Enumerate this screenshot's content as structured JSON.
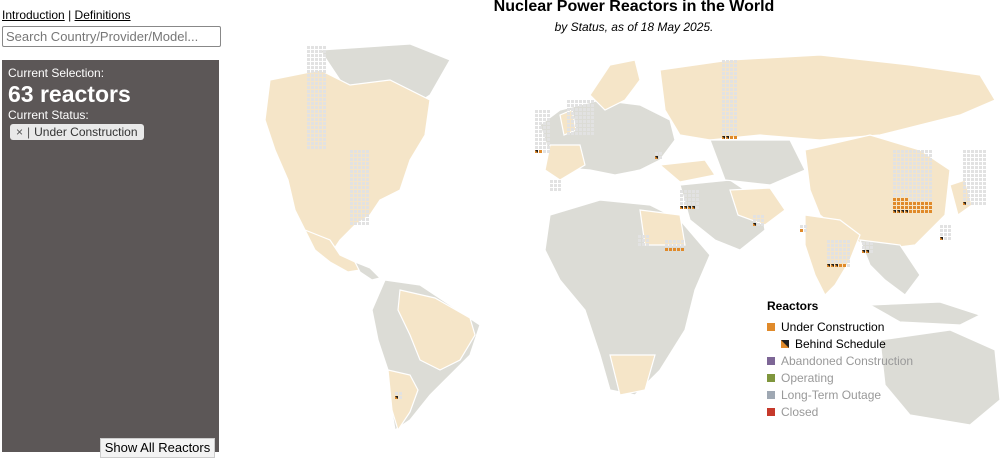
{
  "links": {
    "introduction": "Introduction",
    "separator": "|",
    "definitions": "Definitions"
  },
  "search": {
    "placeholder": "Search Country/Provider/Model..."
  },
  "panel": {
    "selection_label": "Current Selection:",
    "count_text": "63 reactors",
    "status_label": "Current Status:",
    "chip_close": "×",
    "chip_sep": "|",
    "chip_label": "Under Construction",
    "show_all": "Show All Reactors"
  },
  "title": "Nuclear Power Reactors in the World",
  "subtitle": "by Status, as of 18 May 2025.",
  "legend": {
    "title": "Reactors",
    "items": [
      {
        "label": "Under Construction",
        "color": "#e08a2a",
        "dim": false
      },
      {
        "label": "Behind Schedule",
        "color": "#e08a2a",
        "dim": false
      },
      {
        "label": "Abandoned Construction",
        "color": "#7d6696",
        "dim": true
      },
      {
        "label": "Operating",
        "color": "#7f963d",
        "dim": true
      },
      {
        "label": "Long-Term Outage",
        "color": "#9fa8b3",
        "dim": true
      },
      {
        "label": "Closed",
        "color": "#c6392b",
        "dim": true
      }
    ]
  },
  "colors": {
    "land_selected": "#f5e5c8",
    "land_other": "#dcdcd6",
    "waffle_empty": "#e2e2e2",
    "construction": "#e08a2a",
    "behind": "#1e1e1e"
  }
}
